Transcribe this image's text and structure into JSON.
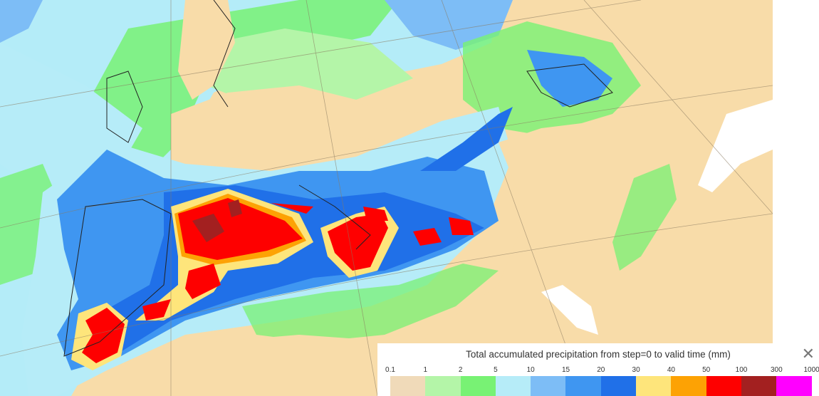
{
  "map": {
    "land_color": "#f8dca9",
    "sea_color": "#b4ecf8"
  },
  "legend": {
    "title": "Total accumulated precipitation from step=0 to valid time (mm)",
    "close_icon": "close-x-icon",
    "thresholds": [
      "0.1",
      "1",
      "2",
      "5",
      "10",
      "15",
      "20",
      "30",
      "40",
      "50",
      "100",
      "300",
      "1000"
    ],
    "colors": [
      "#f0dab9",
      "#b4f5a8",
      "#78f274",
      "#b6ecf8",
      "#7dbdf6",
      "#3f96f1",
      "#2070e8",
      "#fee57b",
      "#fda204",
      "#fe0000",
      "#a32020",
      "#ff00ff"
    ]
  }
}
